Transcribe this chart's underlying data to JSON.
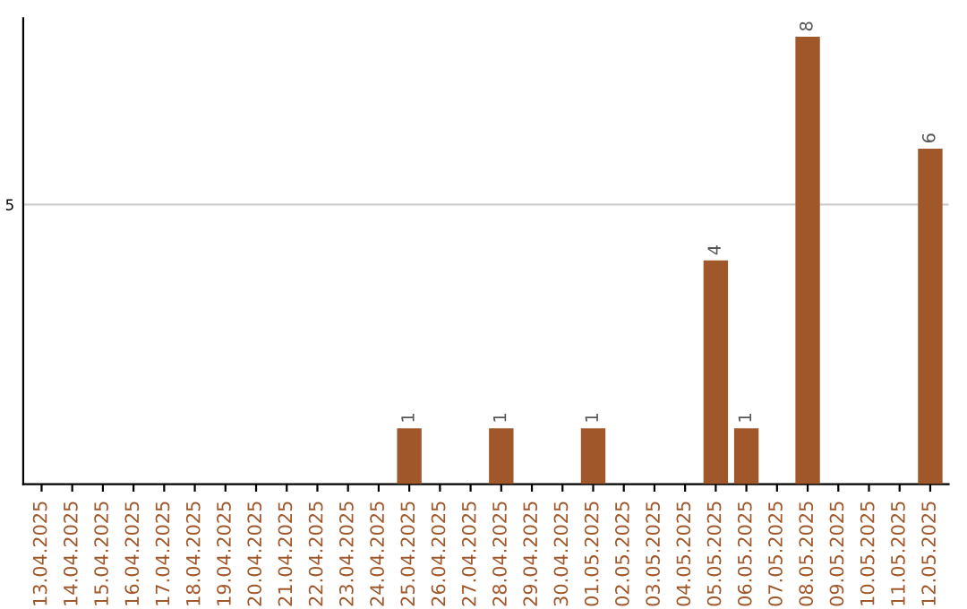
{
  "chart_data": {
    "type": "bar",
    "categories": [
      "13.04.2025",
      "14.04.2025",
      "15.04.2025",
      "16.04.2025",
      "17.04.2025",
      "18.04.2025",
      "19.04.2025",
      "20.04.2025",
      "21.04.2025",
      "22.04.2025",
      "23.04.2025",
      "24.04.2025",
      "25.04.2025",
      "26.04.2025",
      "27.04.2025",
      "28.04.2025",
      "29.04.2025",
      "30.04.2025",
      "01.05.2025",
      "02.05.2025",
      "03.05.2025",
      "04.05.2025",
      "05.05.2025",
      "06.05.2025",
      "07.05.2025",
      "08.05.2025",
      "09.05.2025",
      "10.05.2025",
      "11.05.2025",
      "12.05.2025"
    ],
    "values": [
      null,
      null,
      null,
      null,
      null,
      null,
      null,
      null,
      null,
      null,
      null,
      null,
      1,
      null,
      null,
      1,
      null,
      null,
      1,
      null,
      null,
      null,
      4,
      1,
      null,
      8,
      null,
      null,
      null,
      6
    ],
    "value_labels": [
      null,
      null,
      null,
      null,
      null,
      null,
      null,
      null,
      null,
      null,
      null,
      null,
      "1",
      null,
      null,
      "1",
      null,
      null,
      "1",
      null,
      null,
      null,
      "4",
      "1",
      null,
      "8",
      null,
      null,
      null,
      "6"
    ],
    "color": "#a0572a",
    "ylim": [
      0,
      8.33
    ],
    "yticks": [
      5
    ],
    "grid": "y"
  }
}
